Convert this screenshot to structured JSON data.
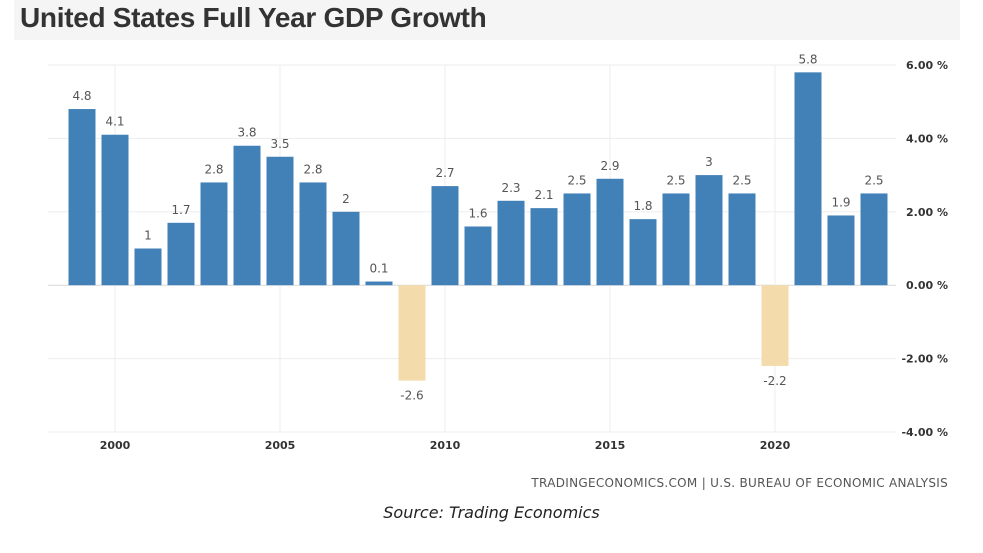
{
  "chart_data": {
    "type": "bar",
    "title": "United States Full Year GDP Growth",
    "xlabel": "",
    "ylabel": "",
    "x": [
      1999,
      2000,
      2001,
      2002,
      2003,
      2004,
      2005,
      2006,
      2007,
      2008,
      2009,
      2010,
      2011,
      2012,
      2013,
      2014,
      2015,
      2016,
      2017,
      2018,
      2019,
      2020,
      2021,
      2022,
      2023
    ],
    "values": [
      4.8,
      4.1,
      1,
      1.7,
      2.8,
      3.8,
      3.5,
      2.8,
      2,
      0.1,
      -2.6,
      2.7,
      1.6,
      2.3,
      2.1,
      2.5,
      2.9,
      1.8,
      2.5,
      3,
      2.5,
      -2.2,
      5.8,
      1.9,
      2.5
    ],
    "labels": [
      "4.8",
      "4.1",
      "1",
      "1.7",
      "2.8",
      "3.8",
      "3.5",
      "2.8",
      "2",
      "0.1",
      "-2.6",
      "2.7",
      "1.6",
      "2.3",
      "2.1",
      "2.5",
      "2.9",
      "1.8",
      "2.5",
      "3",
      "2.5",
      "-2.2",
      "5.8",
      "1.9",
      "2.5"
    ],
    "x_ticks": [
      2000,
      2005,
      2010,
      2015,
      2020
    ],
    "y_ticks": [
      6,
      4,
      2,
      0,
      -2,
      -4
    ],
    "y_tick_labels": [
      "6.00 %",
      "4.00 %",
      "2.00 %",
      "0.00 %",
      "-2.00 %",
      "-4.00 %"
    ],
    "ylim": [
      -4,
      6
    ],
    "grid": true,
    "colors": {
      "positive": "#4281b7",
      "negative": "#f4dbac"
    },
    "credit": "TRADINGECONOMICS.COM | U.S. BUREAU OF ECONOMIC ANALYSIS"
  },
  "caption": "Source: Trading Economics"
}
